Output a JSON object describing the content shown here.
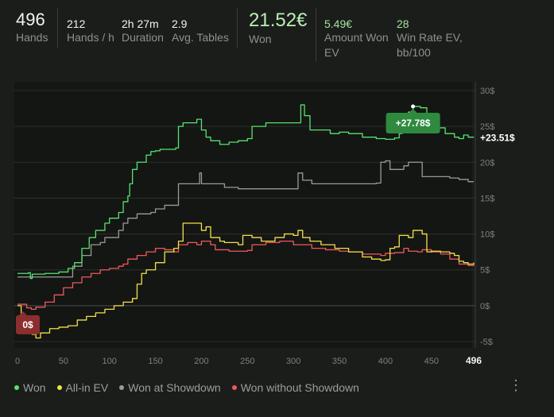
{
  "stats": {
    "hands": {
      "value": "496",
      "label": "Hands"
    },
    "hands_per_hour": {
      "value": "212",
      "label": "Hands / h"
    },
    "duration": {
      "value": "2h 27m",
      "label": "Duration"
    },
    "avg_tables": {
      "value": "2.9",
      "label": "Avg. Tables"
    },
    "won": {
      "value": "21.52€",
      "label": "Won"
    },
    "amount_won_ev": {
      "value": "5.49€",
      "label_line1": "Amount Won",
      "label_line2": "EV"
    },
    "win_rate_ev": {
      "value": "28",
      "label_line1": "Win Rate EV,",
      "label_line2": "bb/100"
    }
  },
  "legend": [
    {
      "name": "Won",
      "color": "#57e36e"
    },
    {
      "name": "All-in EV",
      "color": "#f2e04a"
    },
    {
      "name": "Won at Showdown",
      "color": "#9a9a9a"
    },
    {
      "name": "Won without Showdown",
      "color": "#f0585a"
    }
  ],
  "chart_data": {
    "type": "line",
    "xlim": [
      0,
      496
    ],
    "ylim": [
      -5,
      30
    ],
    "x_ticks": [
      "0",
      "50",
      "100",
      "150",
      "200",
      "250",
      "300",
      "350",
      "400",
      "450"
    ],
    "x_end_label": "496",
    "y_ticks": [
      "30$",
      "25$",
      "20$",
      "15$",
      "10$",
      "5$",
      "0$",
      "-5$"
    ],
    "y_tick_values": [
      30,
      25,
      20,
      15,
      10,
      5,
      0,
      -5
    ],
    "x_tick_values": [
      0,
      50,
      100,
      150,
      200,
      250,
      300,
      350,
      400,
      450
    ],
    "annotations": {
      "peak": {
        "label": "+27.78$",
        "x": 430,
        "y": 27.78
      },
      "end": {
        "label": "+23.51$",
        "x": 496,
        "y": 23.51
      },
      "start": {
        "label": "0$",
        "x": 0,
        "y": 0
      }
    },
    "series": [
      {
        "name": "Won",
        "color": "#57e36e",
        "points": [
          [
            0,
            4.5
          ],
          [
            12,
            4.6
          ],
          [
            14,
            3.8
          ],
          [
            16,
            4.4
          ],
          [
            30,
            4.5
          ],
          [
            45,
            4.7
          ],
          [
            55,
            5.2
          ],
          [
            62,
            6.0
          ],
          [
            70,
            8.0
          ],
          [
            78,
            9.5
          ],
          [
            85,
            10.5
          ],
          [
            95,
            11.5
          ],
          [
            100,
            12.2
          ],
          [
            110,
            13.0
          ],
          [
            115,
            14.5
          ],
          [
            120,
            15.3
          ],
          [
            122,
            17.0
          ],
          [
            125,
            19.0
          ],
          [
            130,
            20.0
          ],
          [
            140,
            21.0
          ],
          [
            145,
            21.5
          ],
          [
            150,
            21.6
          ],
          [
            155,
            21.8
          ],
          [
            172,
            22.0
          ],
          [
            175,
            25.0
          ],
          [
            180,
            25.5
          ],
          [
            195,
            26.0
          ],
          [
            200,
            24.5
          ],
          [
            205,
            23.5
          ],
          [
            210,
            23.0
          ],
          [
            220,
            22.5
          ],
          [
            230,
            22.8
          ],
          [
            240,
            23.0
          ],
          [
            250,
            23.3
          ],
          [
            255,
            25.0
          ],
          [
            270,
            25.5
          ],
          [
            285,
            25.5
          ],
          [
            305,
            25.5
          ],
          [
            308,
            28.0
          ],
          [
            312,
            26.5
          ],
          [
            318,
            24.5
          ],
          [
            330,
            24.5
          ],
          [
            340,
            24.0
          ],
          [
            350,
            24.2
          ],
          [
            360,
            24.0
          ],
          [
            375,
            23.5
          ],
          [
            390,
            23.3
          ],
          [
            400,
            23.2
          ],
          [
            410,
            23.4
          ],
          [
            415,
            24.0
          ],
          [
            418,
            25.0
          ],
          [
            420,
            26.0
          ],
          [
            425,
            27.0
          ],
          [
            430,
            27.78
          ],
          [
            438,
            27.6
          ],
          [
            445,
            25.0
          ],
          [
            455,
            24.8
          ],
          [
            465,
            24.0
          ],
          [
            475,
            23.5
          ],
          [
            480,
            23.3
          ],
          [
            485,
            23.8
          ],
          [
            490,
            23.5
          ],
          [
            496,
            23.51
          ]
        ]
      },
      {
        "name": "All-in EV",
        "color": "#f2e04a",
        "points": [
          [
            0,
            0.0
          ],
          [
            4,
            -2.0
          ],
          [
            8,
            -3.0
          ],
          [
            12,
            -3.5
          ],
          [
            16,
            -4.0
          ],
          [
            20,
            -4.5
          ],
          [
            25,
            -3.8
          ],
          [
            35,
            -3.2
          ],
          [
            45,
            -3.0
          ],
          [
            55,
            -2.8
          ],
          [
            65,
            -2.0
          ],
          [
            75,
            -1.5
          ],
          [
            85,
            -1.0
          ],
          [
            95,
            -0.5
          ],
          [
            105,
            0.0
          ],
          [
            115,
            0.5
          ],
          [
            125,
            1.0
          ],
          [
            130,
            3.0
          ],
          [
            135,
            4.5
          ],
          [
            140,
            5.0
          ],
          [
            150,
            6.0
          ],
          [
            160,
            7.5
          ],
          [
            170,
            8.0
          ],
          [
            175,
            9.0
          ],
          [
            180,
            11.5
          ],
          [
            190,
            11.5
          ],
          [
            200,
            10.5
          ],
          [
            205,
            11.0
          ],
          [
            210,
            9.5
          ],
          [
            220,
            9.0
          ],
          [
            225,
            8.8
          ],
          [
            240,
            8.5
          ],
          [
            245,
            9.8
          ],
          [
            255,
            9.5
          ],
          [
            265,
            9.0
          ],
          [
            280,
            9.5
          ],
          [
            290,
            10.0
          ],
          [
            300,
            9.8
          ],
          [
            305,
            10.5
          ],
          [
            310,
            9.5
          ],
          [
            318,
            9.0
          ],
          [
            330,
            8.5
          ],
          [
            345,
            8.0
          ],
          [
            360,
            7.5
          ],
          [
            375,
            6.8
          ],
          [
            385,
            6.5
          ],
          [
            395,
            6.3
          ],
          [
            400,
            6.4
          ],
          [
            405,
            8.0
          ],
          [
            410,
            8.2
          ],
          [
            415,
            9.8
          ],
          [
            425,
            9.5
          ],
          [
            430,
            10.5
          ],
          [
            440,
            10.0
          ],
          [
            445,
            7.5
          ],
          [
            450,
            7.6
          ],
          [
            460,
            7.5
          ],
          [
            470,
            7.3
          ],
          [
            475,
            7.0
          ],
          [
            480,
            6.2
          ],
          [
            485,
            6.0
          ],
          [
            490,
            5.8
          ],
          [
            496,
            6.0
          ]
        ]
      },
      {
        "name": "Won at Showdown",
        "color": "#9a9a9a",
        "points": [
          [
            0,
            4.0
          ],
          [
            30,
            4.0
          ],
          [
            55,
            4.0
          ],
          [
            60,
            5.5
          ],
          [
            70,
            7.0
          ],
          [
            80,
            8.5
          ],
          [
            90,
            8.8
          ],
          [
            95,
            9.5
          ],
          [
            100,
            9.5
          ],
          [
            110,
            10.5
          ],
          [
            115,
            11.5
          ],
          [
            120,
            12.2
          ],
          [
            130,
            12.8
          ],
          [
            145,
            13.0
          ],
          [
            150,
            13.5
          ],
          [
            160,
            14.0
          ],
          [
            170,
            14.0
          ],
          [
            175,
            17.0
          ],
          [
            195,
            17.0
          ],
          [
            198,
            18.5
          ],
          [
            200,
            17.0
          ],
          [
            220,
            17.0
          ],
          [
            225,
            16.5
          ],
          [
            240,
            16.3
          ],
          [
            260,
            16.3
          ],
          [
            280,
            16.3
          ],
          [
            300,
            16.3
          ],
          [
            305,
            18.5
          ],
          [
            310,
            17.5
          ],
          [
            320,
            17.0
          ],
          [
            340,
            17.0
          ],
          [
            360,
            17.0
          ],
          [
            380,
            17.0
          ],
          [
            390,
            17.1
          ],
          [
            395,
            20.0
          ],
          [
            400,
            20.2
          ],
          [
            405,
            19.0
          ],
          [
            415,
            19.0
          ],
          [
            420,
            19.5
          ],
          [
            425,
            20.0
          ],
          [
            435,
            20.0
          ],
          [
            440,
            18.0
          ],
          [
            450,
            18.0
          ],
          [
            460,
            18.0
          ],
          [
            470,
            17.8
          ],
          [
            480,
            17.6
          ],
          [
            490,
            17.3
          ],
          [
            496,
            17.3
          ]
        ]
      },
      {
        "name": "Won without Showdown",
        "color": "#f0585a",
        "points": [
          [
            0,
            0.2
          ],
          [
            10,
            -0.3
          ],
          [
            15,
            -0.5
          ],
          [
            20,
            -0.2
          ],
          [
            30,
            0.5
          ],
          [
            40,
            1.5
          ],
          [
            50,
            2.5
          ],
          [
            60,
            3.2
          ],
          [
            70,
            4.0
          ],
          [
            80,
            4.5
          ],
          [
            90,
            5.0
          ],
          [
            100,
            5.2
          ],
          [
            110,
            5.5
          ],
          [
            115,
            5.8
          ],
          [
            120,
            6.5
          ],
          [
            130,
            7.0
          ],
          [
            140,
            7.5
          ],
          [
            150,
            8.0
          ],
          [
            160,
            7.8
          ],
          [
            170,
            7.5
          ],
          [
            175,
            8.5
          ],
          [
            185,
            8.8
          ],
          [
            195,
            8.5
          ],
          [
            200,
            9.0
          ],
          [
            210,
            8.5
          ],
          [
            215,
            7.8
          ],
          [
            230,
            7.6
          ],
          [
            250,
            7.7
          ],
          [
            255,
            8.5
          ],
          [
            270,
            8.8
          ],
          [
            285,
            9.0
          ],
          [
            300,
            8.5
          ],
          [
            320,
            8.0
          ],
          [
            335,
            7.8
          ],
          [
            350,
            7.6
          ],
          [
            360,
            7.5
          ],
          [
            375,
            7.2
          ],
          [
            395,
            7.0
          ],
          [
            400,
            7.3
          ],
          [
            410,
            7.4
          ],
          [
            420,
            8.0
          ],
          [
            425,
            7.6
          ],
          [
            435,
            7.5
          ],
          [
            440,
            7.8
          ],
          [
            450,
            7.5
          ],
          [
            460,
            7.2
          ],
          [
            470,
            6.5
          ],
          [
            480,
            5.8
          ],
          [
            490,
            5.6
          ],
          [
            496,
            5.8
          ]
        ]
      }
    ]
  }
}
